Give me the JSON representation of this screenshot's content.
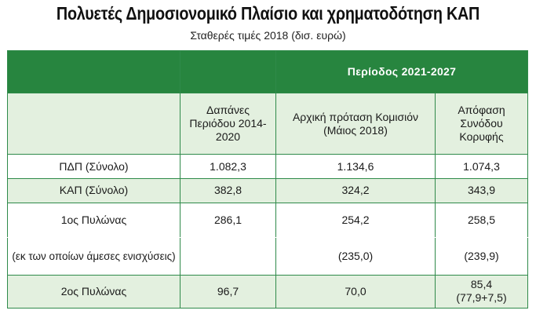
{
  "title": "Πολυετές Δημοσιονομικό Πλαίσιο και χρηματοδότηση ΚΑΠ",
  "subtitle": "Σταθερές τιμές 2018 (δισ. ευρώ)",
  "table": {
    "period_header": "Περίοδος 2021-2027",
    "col_headers": [
      "Δαπάνες Περιόδου 2014-2020",
      "Αρχική πρόταση Κομισιόν (Μάιος 2018)",
      "Απόφαση Συνόδου Κορυφής"
    ],
    "rows": [
      {
        "label": "ΠΔΠ (Σύνολο)",
        "values": [
          "1.082,3",
          "1.134,6",
          "1.074,3"
        ]
      },
      {
        "label": "ΚΑΠ (Σύνολο)",
        "values": [
          "382,8",
          "324,2",
          "343,9"
        ]
      },
      {
        "label": "1ος Πυλώνας",
        "values": [
          "286,1",
          "254,2",
          "258,5"
        ]
      },
      {
        "label": "(εκ των οποίων άμεσες ενισχύσεις)",
        "values": [
          "",
          "(235,0)",
          "(239,9)"
        ]
      },
      {
        "label": "2ος Πυλώνας",
        "values": [
          "96,7",
          "70,0",
          "85,4"
        ],
        "note": "(77,9+7,5)"
      }
    ]
  },
  "colors": {
    "header_green": "#27853f",
    "light_green": "#e3f0df",
    "border": "#2f8a4a"
  }
}
